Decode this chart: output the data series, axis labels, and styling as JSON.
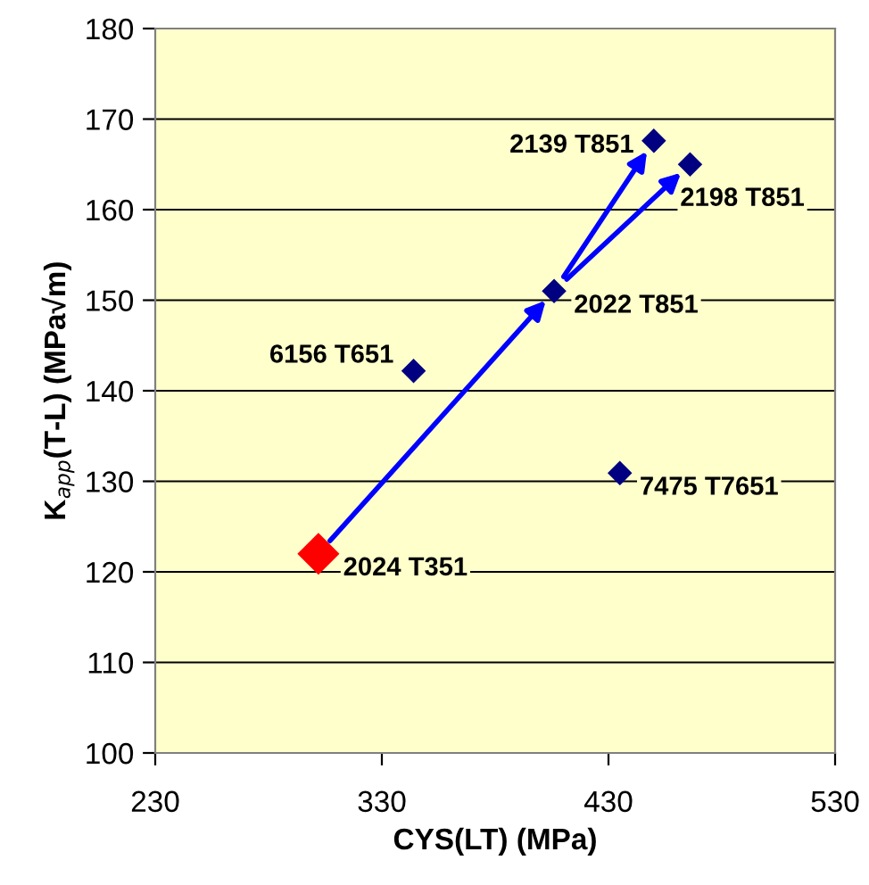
{
  "chart_data": {
    "type": "scatter",
    "xlabel": "CYS(LT) (MPa)",
    "ylabel": "K$_{app}$(T-L) (MPa√m)",
    "series": [
      {
        "color": "#ff0000",
        "x": [
          302
        ],
        "values": [
          122
        ],
        "marker": "diamond"
      },
      {
        "color": "#000080",
        "x": [
          344,
          406,
          450,
          466,
          435
        ],
        "values": [
          142.2,
          151,
          167.6,
          165,
          130.9
        ],
        "marker": "diamond"
      }
    ],
    "annotations": [
      {
        "text": "2024 T351",
        "x": 302,
        "y": 122
      },
      {
        "text": "6156 T651",
        "x": 344,
        "y": 142.2
      },
      {
        "text": "2022 T851",
        "x": 406,
        "y": 151
      },
      {
        "text": "2139 T851",
        "x": 450,
        "y": 167.6
      },
      {
        "text": "2198 T851",
        "x": 466,
        "y": 165
      },
      {
        "text": "7475 T7651",
        "x": 435,
        "y": 130.9
      }
    ],
    "xlim": [
      230,
      530
    ],
    "xticks": [
      230,
      330,
      430,
      530
    ],
    "ylim": [
      100,
      180
    ],
    "yticks": [
      100,
      110,
      120,
      130,
      140,
      150,
      160,
      170,
      180
    ],
    "grid": "y",
    "legend": false
  }
}
